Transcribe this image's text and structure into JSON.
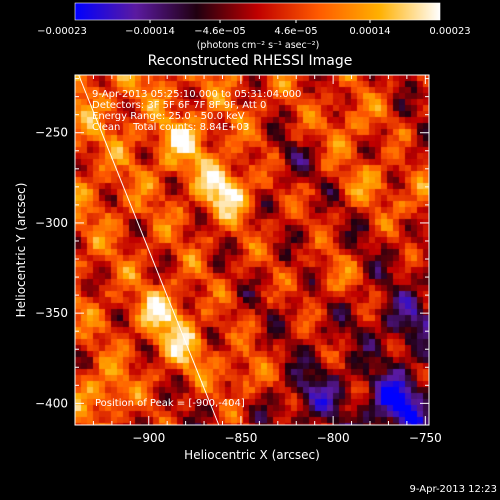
{
  "chart_data": {
    "type": "heatmap",
    "title": "Reconstructed RHESSI Image",
    "xlabel": "Heliocentric X (arcsec)",
    "ylabel": "Heliocentric Y (arcsec)",
    "xlim": [
      -940,
      -748
    ],
    "ylim": [
      -412,
      -218
    ],
    "xticks": [
      -900,
      -850,
      -800,
      -750
    ],
    "yticks": [
      -250,
      -300,
      -350,
      -400
    ],
    "xtick_labels": [
      "−900",
      "−850",
      "−800",
      "−750"
    ],
    "ytick_labels": [
      "−250",
      "−300",
      "−350",
      "−400"
    ],
    "colorbar": {
      "range": [
        -0.00023,
        0.00023
      ],
      "tick_labels": [
        "−0.00023",
        "−0.00014",
        "−4.6e−05",
        "4.6e−05",
        "0.00014",
        "0.00023"
      ],
      "unit_label": "(photons cm⁻² s⁻¹ asec⁻²)",
      "colors": [
        "#0000ff",
        "#5b1aa0",
        "#200010",
        "#c00000",
        "#ff5a00",
        "#ffb000",
        "#ffffff"
      ]
    },
    "annotations": {
      "time_range": "9-Apr-2013 05:25:10.000 to 05:31:04.000",
      "detectors": "Detectors: 3F 5F 6F 7F 8F 9F, Att 0",
      "energy": "Energy Range: 25.0 - 50.0 keV",
      "clean": "Clean    Total counts: 8.84E+03",
      "peak": "Position of Peak = [-900,-404]"
    },
    "peak_position": [
      -900,
      -404
    ],
    "limb_line": [
      [
        -938,
        -218
      ],
      [
        -862,
        -412
      ]
    ],
    "hot_spots": [
      {
        "x": -858,
        "y": -282,
        "v": 0.00018
      },
      {
        "x": -880,
        "y": -256,
        "v": 0.00012
      },
      {
        "x": -892,
        "y": -350,
        "v": 0.00015
      },
      {
        "x": -880,
        "y": -370,
        "v": 0.00013
      },
      {
        "x": -925,
        "y": -395,
        "v": 0.00012
      },
      {
        "x": -850,
        "y": -385,
        "v": 0.0001
      },
      {
        "x": -778,
        "y": -276,
        "v": 0.0001
      },
      {
        "x": -752,
        "y": -290,
        "v": 0.00012
      },
      {
        "x": -790,
        "y": -245,
        "v": 8e-05
      },
      {
        "x": -800,
        "y": -330,
        "v": 7e-05
      }
    ],
    "cold_spots": [
      {
        "x": -765,
        "y": -400,
        "v": -0.0002
      },
      {
        "x": -810,
        "y": -395,
        "v": -0.0001
      },
      {
        "x": -760,
        "y": -355,
        "v": -9e-05
      },
      {
        "x": -825,
        "y": -265,
        "v": -7e-05
      }
    ]
  },
  "footer": {
    "timestamp": "9-Apr-2013 12:23"
  }
}
